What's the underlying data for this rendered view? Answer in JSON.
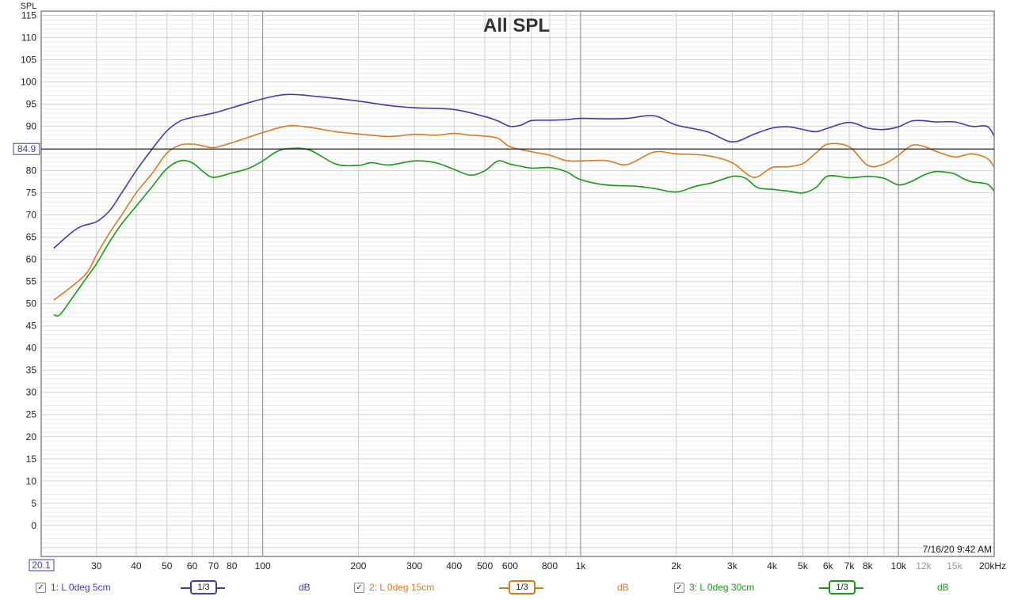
{
  "chart_data": {
    "type": "line",
    "title": "All SPL",
    "ylabel": "SPL",
    "xscale": "log",
    "xlim": [
      20.1,
      20000
    ],
    "ylim": [
      -7,
      116
    ],
    "y_ticks": [
      "115",
      "110",
      "105",
      "100",
      "95",
      "90",
      "85",
      "80",
      "75",
      "70",
      "65",
      "60",
      "55",
      "50",
      "45",
      "40",
      "35",
      "30",
      "25",
      "20",
      "15",
      "10",
      "5",
      "0"
    ],
    "x_ticks": [
      {
        "f": 30,
        "label": "30"
      },
      {
        "f": 40,
        "label": "40"
      },
      {
        "f": 50,
        "label": "50"
      },
      {
        "f": 60,
        "label": "60"
      },
      {
        "f": 70,
        "label": "70"
      },
      {
        "f": 80,
        "label": "80"
      },
      {
        "f": 100,
        "label": "100"
      },
      {
        "f": 200,
        "label": "200"
      },
      {
        "f": 300,
        "label": "300"
      },
      {
        "f": 400,
        "label": "400"
      },
      {
        "f": 500,
        "label": "500"
      },
      {
        "f": 600,
        "label": "600"
      },
      {
        "f": 800,
        "label": "800"
      },
      {
        "f": 1000,
        "label": "1k"
      },
      {
        "f": 2000,
        "label": "2k"
      },
      {
        "f": 3000,
        "label": "3k"
      },
      {
        "f": 4000,
        "label": "4k"
      },
      {
        "f": 5000,
        "label": "5k"
      },
      {
        "f": 6000,
        "label": "6k"
      },
      {
        "f": 7000,
        "label": "7k"
      },
      {
        "f": 8000,
        "label": "8k"
      },
      {
        "f": 10000,
        "label": "10k"
      },
      {
        "f": 12000,
        "label": "12k",
        "minor": true
      },
      {
        "f": 15000,
        "label": "15k",
        "minor": true
      },
      {
        "f": 20000,
        "label": "20kHz"
      }
    ],
    "x_axis_start_label": "20.1",
    "cursor_value": 84.9,
    "cursor_label": "84.9",
    "timestamp": "7/16/20 9:42 AM",
    "grid": true,
    "legend_position": "bottom",
    "series": [
      {
        "name": "1: L 0deg 5cm",
        "color": "#3d3db0",
        "smoothing": "1/3",
        "unit": "dB",
        "points": [
          [
            22,
            62.5
          ],
          [
            25,
            66
          ],
          [
            27,
            67.5
          ],
          [
            30,
            68.5
          ],
          [
            33,
            71
          ],
          [
            36,
            75
          ],
          [
            40,
            80
          ],
          [
            45,
            85
          ],
          [
            50,
            89
          ],
          [
            55,
            91.2
          ],
          [
            60,
            92
          ],
          [
            70,
            93
          ],
          [
            80,
            94.2
          ],
          [
            100,
            96.2
          ],
          [
            120,
            97.2
          ],
          [
            150,
            96.7
          ],
          [
            200,
            95.7
          ],
          [
            250,
            94.7
          ],
          [
            300,
            94.2
          ],
          [
            400,
            93.8
          ],
          [
            500,
            92.2
          ],
          [
            550,
            91.2
          ],
          [
            600,
            90
          ],
          [
            650,
            90.3
          ],
          [
            700,
            91.3
          ],
          [
            800,
            91.4
          ],
          [
            900,
            91.5
          ],
          [
            1000,
            91.8
          ],
          [
            1200,
            91.7
          ],
          [
            1400,
            91.8
          ],
          [
            1700,
            92.4
          ],
          [
            2000,
            90.3
          ],
          [
            2500,
            88.8
          ],
          [
            3000,
            86.5
          ],
          [
            3500,
            88.2
          ],
          [
            4000,
            89.6
          ],
          [
            4500,
            89.9
          ],
          [
            5000,
            89.3
          ],
          [
            5500,
            88.8
          ],
          [
            6000,
            89.6
          ],
          [
            7000,
            90.9
          ],
          [
            8000,
            89.6
          ],
          [
            9000,
            89.3
          ],
          [
            10000,
            89.9
          ],
          [
            11000,
            91.2
          ],
          [
            12000,
            91.3
          ],
          [
            13000,
            91
          ],
          [
            15000,
            91
          ],
          [
            17000,
            90
          ],
          [
            19000,
            90
          ],
          [
            20000,
            87.8
          ]
        ]
      },
      {
        "name": "2: L 0deg 15cm",
        "color": "#dd7a1c",
        "smoothing": "1/3",
        "unit": "dB",
        "points": [
          [
            22,
            50.8
          ],
          [
            25,
            53.8
          ],
          [
            28,
            57
          ],
          [
            30,
            61
          ],
          [
            33,
            66
          ],
          [
            36,
            70
          ],
          [
            40,
            75
          ],
          [
            45,
            79.5
          ],
          [
            50,
            84
          ],
          [
            55,
            85.8
          ],
          [
            60,
            86
          ],
          [
            65,
            85.6
          ],
          [
            70,
            85.2
          ],
          [
            80,
            86.3
          ],
          [
            100,
            88.6
          ],
          [
            120,
            90.1
          ],
          [
            140,
            89.8
          ],
          [
            170,
            88.8
          ],
          [
            200,
            88.3
          ],
          [
            250,
            87.7
          ],
          [
            300,
            88.2
          ],
          [
            350,
            88
          ],
          [
            400,
            88.4
          ],
          [
            450,
            88
          ],
          [
            500,
            87.8
          ],
          [
            550,
            87.3
          ],
          [
            600,
            85.4
          ],
          [
            700,
            84.3
          ],
          [
            800,
            83.5
          ],
          [
            900,
            82.3
          ],
          [
            1000,
            82.2
          ],
          [
            1200,
            82.3
          ],
          [
            1400,
            81.4
          ],
          [
            1700,
            84.2
          ],
          [
            2000,
            83.8
          ],
          [
            2500,
            83.4
          ],
          [
            3000,
            81.8
          ],
          [
            3500,
            78.5
          ],
          [
            4000,
            80.7
          ],
          [
            4500,
            80.9
          ],
          [
            5000,
            81.6
          ],
          [
            5500,
            84
          ],
          [
            6000,
            86
          ],
          [
            7000,
            85.4
          ],
          [
            8000,
            81.2
          ],
          [
            9000,
            81.5
          ],
          [
            10000,
            83.5
          ],
          [
            11000,
            85.7
          ],
          [
            12000,
            85.5
          ],
          [
            13000,
            84.5
          ],
          [
            15000,
            83.1
          ],
          [
            17000,
            83.8
          ],
          [
            19000,
            82.8
          ],
          [
            20000,
            80.8
          ]
        ]
      },
      {
        "name": "3: L 0deg 30cm",
        "color": "#179b17",
        "smoothing": "1/3",
        "unit": "dB",
        "points": [
          [
            22,
            47.5
          ],
          [
            23,
            47.5
          ],
          [
            25,
            51
          ],
          [
            28,
            56
          ],
          [
            30,
            59
          ],
          [
            33,
            64
          ],
          [
            36,
            68
          ],
          [
            40,
            72
          ],
          [
            45,
            76.5
          ],
          [
            50,
            80.5
          ],
          [
            55,
            82.2
          ],
          [
            60,
            81.8
          ],
          [
            65,
            79.8
          ],
          [
            70,
            78.5
          ],
          [
            80,
            79.5
          ],
          [
            90,
            80.5
          ],
          [
            100,
            82.2
          ],
          [
            110,
            84.2
          ],
          [
            120,
            85
          ],
          [
            140,
            84.7
          ],
          [
            170,
            81.5
          ],
          [
            200,
            81.2
          ],
          [
            220,
            81.8
          ],
          [
            250,
            81.3
          ],
          [
            300,
            82.2
          ],
          [
            350,
            81.8
          ],
          [
            400,
            80.3
          ],
          [
            450,
            79
          ],
          [
            500,
            80
          ],
          [
            550,
            82.2
          ],
          [
            600,
            81.5
          ],
          [
            700,
            80.6
          ],
          [
            800,
            80.7
          ],
          [
            900,
            79.8
          ],
          [
            1000,
            78
          ],
          [
            1200,
            76.8
          ],
          [
            1500,
            76.5
          ],
          [
            1700,
            76
          ],
          [
            2000,
            75.2
          ],
          [
            2300,
            76.5
          ],
          [
            2600,
            77.3
          ],
          [
            3000,
            78.7
          ],
          [
            3300,
            78.3
          ],
          [
            3600,
            76.2
          ],
          [
            4000,
            75.8
          ],
          [
            4500,
            75.4
          ],
          [
            5000,
            75
          ],
          [
            5500,
            76.2
          ],
          [
            6000,
            78.8
          ],
          [
            7000,
            78.4
          ],
          [
            8000,
            78.7
          ],
          [
            9000,
            78.3
          ],
          [
            10000,
            76.8
          ],
          [
            11000,
            77.6
          ],
          [
            12000,
            79
          ],
          [
            13000,
            79.8
          ],
          [
            14000,
            79.7
          ],
          [
            15000,
            79.3
          ],
          [
            16000,
            78.2
          ],
          [
            17000,
            77.5
          ],
          [
            19000,
            77
          ],
          [
            20000,
            75.4
          ]
        ]
      }
    ]
  }
}
